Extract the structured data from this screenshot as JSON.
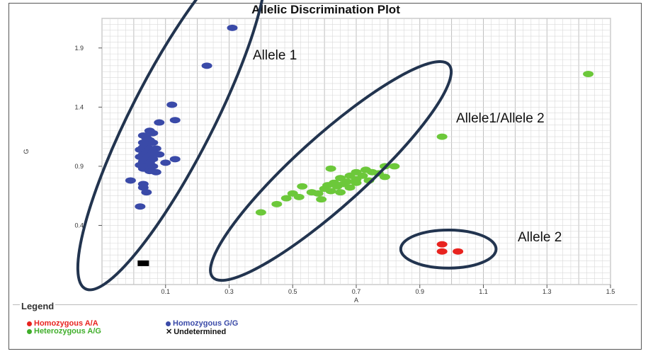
{
  "chart_data": {
    "type": "scatter",
    "title": "Allelic Discrimination Plot",
    "xlabel": "A",
    "ylabel": "G",
    "xlim": [
      -0.1,
      1.5
    ],
    "ylim": [
      -0.1,
      2.15
    ],
    "x_ticks": [
      "0.1",
      "0.3",
      "0.5",
      "0.7",
      "0.9",
      "1.1",
      "1.3",
      "1.5"
    ],
    "y_ticks": [
      "0.4",
      "0.9",
      "1.4",
      "1.9"
    ],
    "grid": true,
    "series": [
      {
        "name": "Homozygous A/A",
        "color": "#e8231f",
        "points": [
          [
            0.97,
            0.24
          ],
          [
            0.97,
            0.18
          ],
          [
            1.02,
            0.18
          ]
        ]
      },
      {
        "name": "Homozygous G/G",
        "color": "#3a4aa8",
        "points": [
          [
            0.31,
            2.07
          ],
          [
            0.23,
            1.75
          ],
          [
            0.12,
            1.42
          ],
          [
            0.13,
            1.29
          ],
          [
            0.08,
            1.27
          ],
          [
            0.05,
            1.2
          ],
          [
            0.06,
            1.18
          ],
          [
            0.03,
            1.16
          ],
          [
            0.04,
            1.14
          ],
          [
            0.05,
            1.12
          ],
          [
            0.03,
            1.1
          ],
          [
            0.06,
            1.1
          ],
          [
            0.04,
            1.08
          ],
          [
            0.03,
            1.06
          ],
          [
            0.05,
            1.05
          ],
          [
            0.07,
            1.05
          ],
          [
            0.02,
            1.04
          ],
          [
            0.04,
            1.02
          ],
          [
            0.06,
            1.02
          ],
          [
            0.03,
            1.0
          ],
          [
            0.05,
            0.99
          ],
          [
            0.08,
            1.0
          ],
          [
            0.02,
            0.98
          ],
          [
            0.04,
            0.96
          ],
          [
            0.06,
            0.96
          ],
          [
            0.03,
            0.94
          ],
          [
            0.05,
            0.93
          ],
          [
            0.13,
            0.96
          ],
          [
            0.1,
            0.93
          ],
          [
            0.02,
            0.91
          ],
          [
            0.04,
            0.9
          ],
          [
            0.06,
            0.9
          ],
          [
            0.03,
            0.88
          ],
          [
            0.05,
            0.86
          ],
          [
            0.07,
            0.85
          ],
          [
            -0.01,
            0.78
          ],
          [
            0.03,
            0.75
          ],
          [
            0.03,
            0.72
          ],
          [
            0.04,
            0.68
          ],
          [
            0.02,
            0.56
          ]
        ]
      },
      {
        "name": "Heterozygous A/G",
        "color": "#6cc83a",
        "points": [
          [
            1.43,
            1.68
          ],
          [
            0.97,
            1.15
          ],
          [
            0.82,
            0.9
          ],
          [
            0.79,
            0.9
          ],
          [
            0.79,
            0.81
          ],
          [
            0.62,
            0.88
          ],
          [
            0.73,
            0.87
          ],
          [
            0.7,
            0.85
          ],
          [
            0.75,
            0.85
          ],
          [
            0.77,
            0.84
          ],
          [
            0.72,
            0.82
          ],
          [
            0.68,
            0.82
          ],
          [
            0.65,
            0.8
          ],
          [
            0.7,
            0.79
          ],
          [
            0.74,
            0.78
          ],
          [
            0.67,
            0.77
          ],
          [
            0.63,
            0.76
          ],
          [
            0.7,
            0.76
          ],
          [
            0.66,
            0.75
          ],
          [
            0.61,
            0.74
          ],
          [
            0.64,
            0.73
          ],
          [
            0.68,
            0.72
          ],
          [
            0.6,
            0.71
          ],
          [
            0.62,
            0.69
          ],
          [
            0.65,
            0.68
          ],
          [
            0.58,
            0.67
          ],
          [
            0.53,
            0.73
          ],
          [
            0.56,
            0.68
          ],
          [
            0.5,
            0.67
          ],
          [
            0.52,
            0.64
          ],
          [
            0.48,
            0.63
          ],
          [
            0.59,
            0.62
          ],
          [
            0.45,
            0.58
          ],
          [
            0.4,
            0.51
          ]
        ]
      },
      {
        "name": "Undetermined",
        "color": "#000000",
        "points": [
          [
            0.03,
            0.08
          ]
        ]
      }
    ],
    "ellipses": [
      {
        "label": "Allele 1",
        "cx": 0.12,
        "cy": 1.3,
        "rx": 0.6,
        "ry": 0.13,
        "angle_deg": 63
      },
      {
        "label": "Allele1/Allele 2",
        "cx": 0.62,
        "cy": 0.86,
        "rx": 0.5,
        "ry": 0.11,
        "angle_deg": 42
      },
      {
        "label": "Allele 2",
        "cx": 0.99,
        "cy": 0.2,
        "rx": 0.15,
        "ry": 0.06,
        "angle_deg": 0
      }
    ],
    "annotations": [
      "Allele 1",
      "Allele1/Allele 2",
      "Allele 2"
    ],
    "legend": {
      "title": "Legend",
      "placement": "bottom",
      "entries": [
        "Homozygous A/A",
        "Homozygous G/G",
        "Heterozygous A/G",
        "Undetermined"
      ]
    }
  }
}
